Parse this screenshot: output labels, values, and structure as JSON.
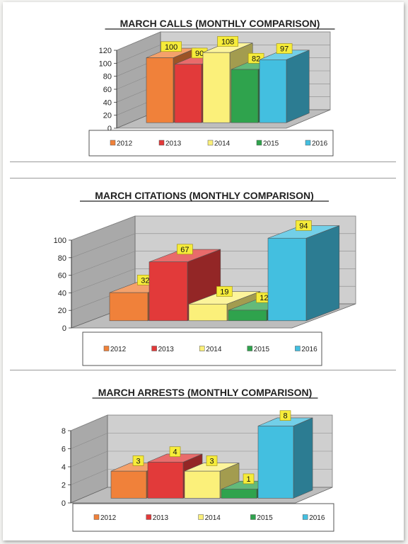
{
  "colors": {
    "2012": "#f0813a",
    "2013": "#e23a3a",
    "2014": "#fbf07a",
    "2015": "#2fa34d",
    "2016": "#43bfe0"
  },
  "chart_data": [
    {
      "type": "bar",
      "title": "MARCH CALLS (MONTHLY COMPARISON)",
      "series": [
        {
          "name": "2012",
          "value": 100
        },
        {
          "name": "2013",
          "value": 90
        },
        {
          "name": "2014",
          "value": 108
        },
        {
          "name": "2015",
          "value": 82
        },
        {
          "name": "2016",
          "value": 97
        }
      ],
      "yticks": [
        0,
        20,
        40,
        60,
        80,
        100,
        120
      ],
      "ylim": [
        0,
        120
      ],
      "legend": "bottom",
      "grid": true
    },
    {
      "type": "bar",
      "title": "MARCH CITATIONS (MONTHLY COMPARISON)",
      "series": [
        {
          "name": "2012",
          "value": 32
        },
        {
          "name": "2013",
          "value": 67
        },
        {
          "name": "2014",
          "value": 19
        },
        {
          "name": "2015",
          "value": 12
        },
        {
          "name": "2016",
          "value": 94
        }
      ],
      "yticks": [
        0,
        20,
        40,
        60,
        80,
        100
      ],
      "ylim": [
        0,
        100
      ],
      "legend": "bottom",
      "grid": true
    },
    {
      "type": "bar",
      "title": "MARCH ARRESTS (MONTHLY COMPARISON)",
      "series": [
        {
          "name": "2012",
          "value": 3
        },
        {
          "name": "2013",
          "value": 4
        },
        {
          "name": "2014",
          "value": 3
        },
        {
          "name": "2015",
          "value": 1
        },
        {
          "name": "2016",
          "value": 8
        }
      ],
      "yticks": [
        0,
        2,
        4,
        6,
        8
      ],
      "ylim": [
        0,
        8
      ],
      "legend": "bottom",
      "grid": true
    }
  ]
}
